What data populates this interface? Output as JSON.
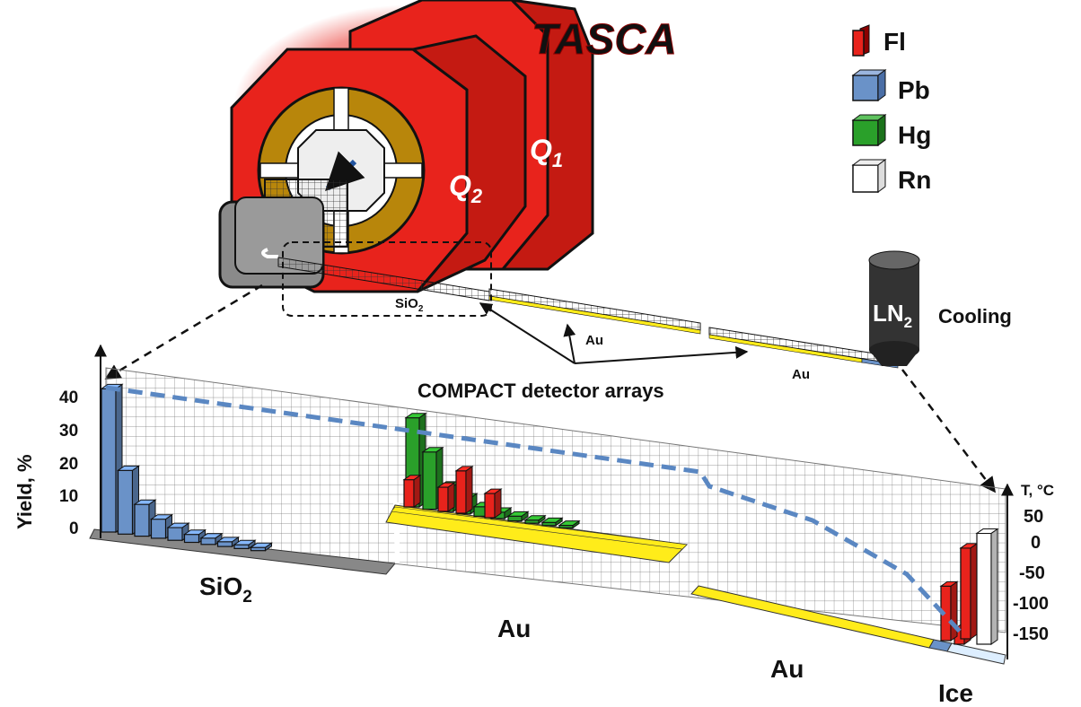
{
  "title": "TASCA",
  "magnets": {
    "q1": "Q",
    "q1_sub": "1",
    "q2": "Q",
    "q2_sub": "2"
  },
  "legend": [
    {
      "label": "Fl",
      "color": "#e8231c"
    },
    {
      "label": "Pb",
      "color": "#6a92c8"
    },
    {
      "label": "Hg",
      "color": "#2aa02a"
    },
    {
      "label": "Rn",
      "color": "#ffffff"
    }
  ],
  "cooling": {
    "ln": "LN",
    "ln_sub": "2",
    "label": "Cooling"
  },
  "detector": {
    "caption": "COMPACT detector arrays",
    "sio2_small": "SiO",
    "sio2_small_sub": "2",
    "au_small_1": "Au",
    "au_small_2": "Au"
  },
  "chart": {
    "y_left_label": "Yield, %",
    "y_left_ticks": [
      "40",
      "30",
      "20",
      "10",
      "0"
    ],
    "y_right_label": "T, °C",
    "y_right_ticks": [
      "50",
      "0",
      "-50",
      "-100",
      "-150"
    ],
    "section_labels": {
      "sio2": "SiO",
      "sio2_sub": "2",
      "au1": "Au",
      "au2": "Au",
      "ice": "Ice"
    }
  },
  "chart_data": {
    "type": "bar",
    "ylabel": "Yield, %",
    "y2label": "T, °C",
    "ylim": [
      0,
      45
    ],
    "y2lim": [
      -175,
      75
    ],
    "series": [
      {
        "name": "Pb",
        "values": [
          45,
          20,
          10,
          6,
          4,
          2.5,
          2,
          1.5,
          1.2,
          1
        ]
      },
      {
        "name": "Hg",
        "values": [
          28,
          18,
          8,
          5,
          3,
          2,
          1.5,
          1,
          1,
          0.8
        ]
      },
      {
        "name": "Fl",
        "values": [
          9,
          8,
          14,
          8,
          5,
          30,
          18
        ]
      },
      {
        "name": "Rn",
        "values": [
          12
        ]
      }
    ],
    "temperature": {
      "start": 42,
      "mid_drop": 16,
      "end": -150
    }
  },
  "colors": {
    "magnet_red": "#e8231c",
    "coil_gold": "#b8860b",
    "gold_strip": "#ffec1a",
    "pb_blue": "#6a92c8",
    "hg_green": "#2aa02a",
    "dash_blue": "#5a87c2"
  }
}
